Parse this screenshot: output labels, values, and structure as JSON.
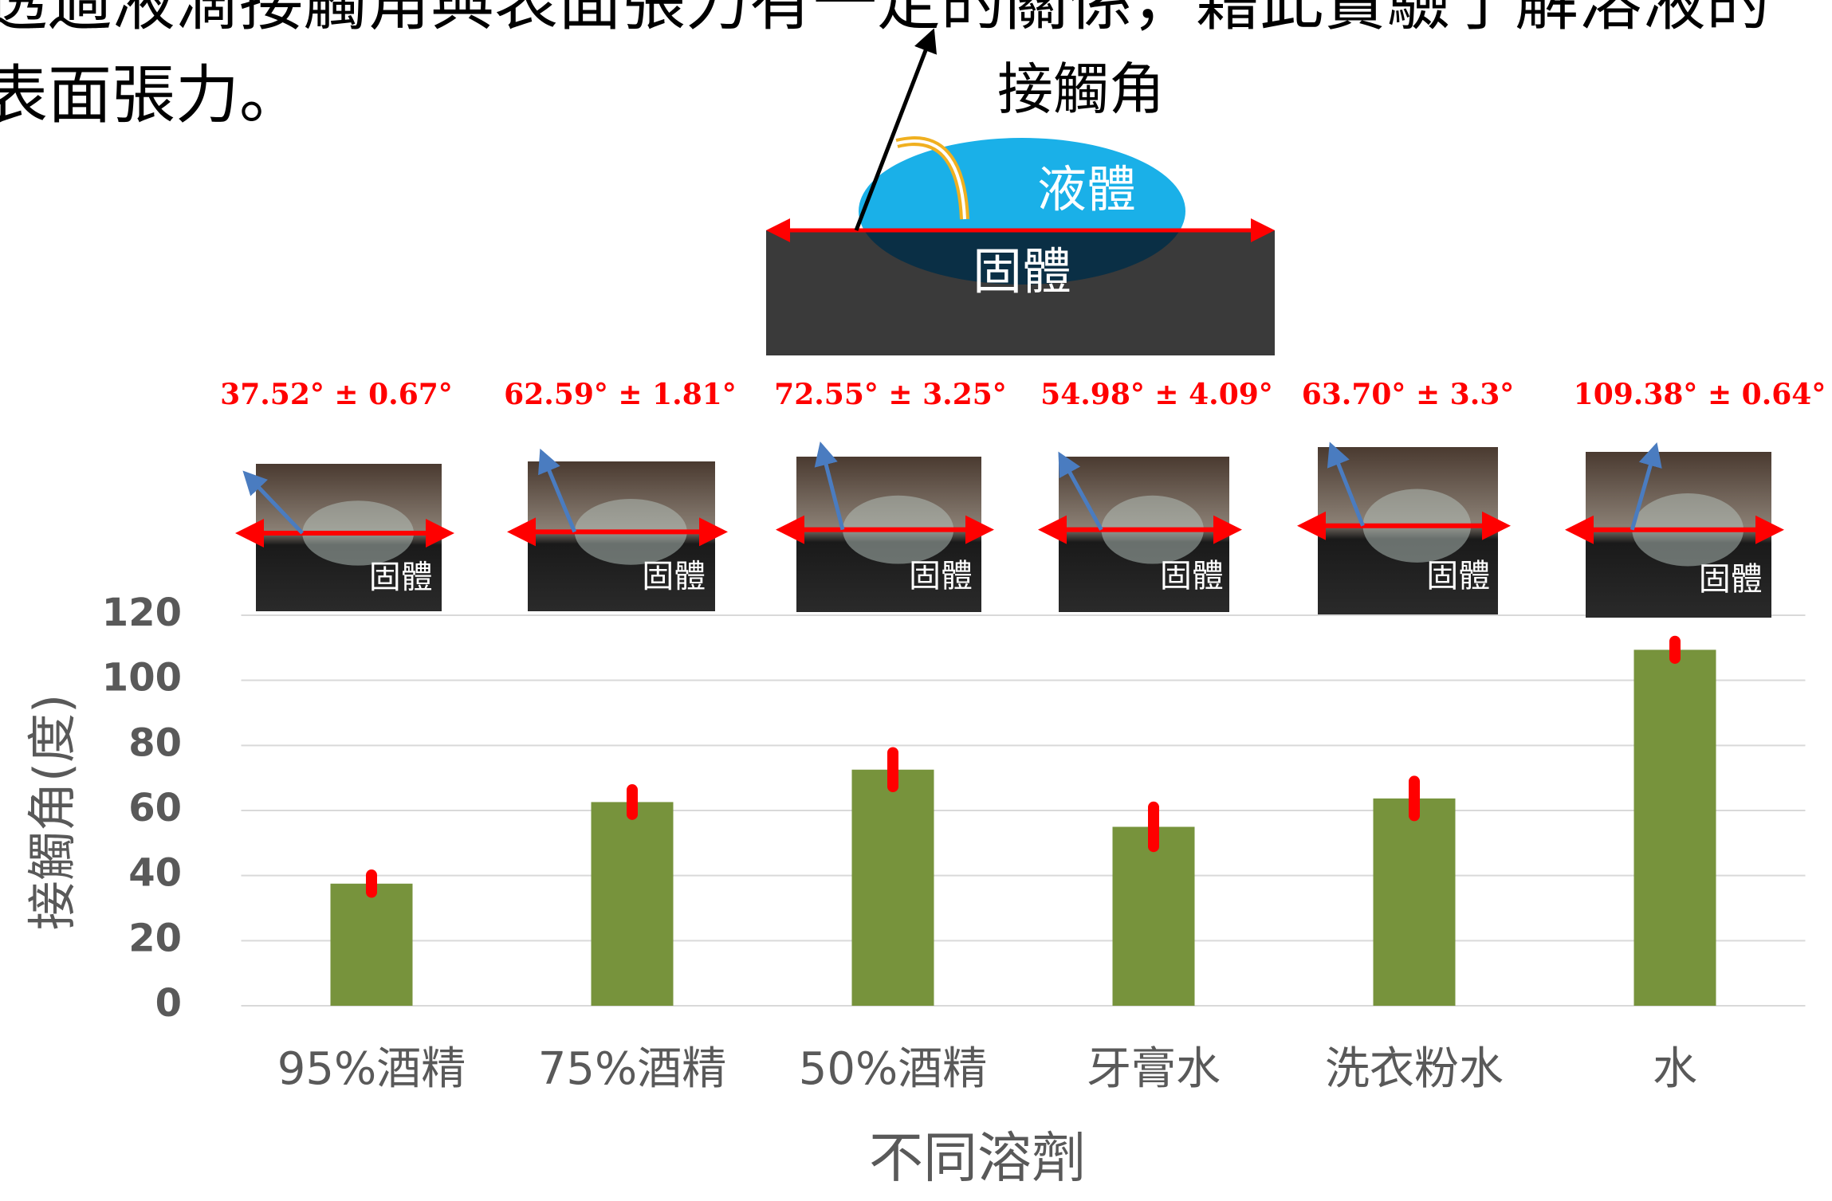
{
  "intro": [
    "透過液滴接觸角與表面張力有一定的關係，藉此實驗了解溶液的",
    "表面張力。"
  ],
  "diagram": {
    "angle_label": "接觸角",
    "liquid": "液體",
    "solid": "固體"
  },
  "chart_data": {
    "type": "bar",
    "categories": [
      "95%酒精",
      "75%酒精",
      "50%酒精",
      "牙膏水",
      "洗衣粉水",
      "水"
    ],
    "values": [
      37.52,
      62.59,
      72.55,
      54.98,
      63.7,
      109.38
    ],
    "errors": [
      0.67,
      1.81,
      3.25,
      4.09,
      3.3,
      0.64
    ],
    "value_labels": [
      "37.52° ± 0.67°",
      "62.59° ± 1.81°",
      "72.55° ± 3.25°",
      "54.98° ± 4.09°",
      "63.70° ± 3.3°",
      "109.38° ± 0.64°"
    ],
    "photo_labels": [
      "固體",
      "固體",
      "固體",
      "固體",
      "固體",
      "固體"
    ],
    "color": "#77933c",
    "error_color": "#ff0000",
    "ylim": [
      0,
      120
    ],
    "yticks": [
      0,
      20,
      40,
      60,
      80,
      100,
      120
    ],
    "grid": true,
    "y_label": "接觸角(度)",
    "x_label": "不同溶劑"
  }
}
